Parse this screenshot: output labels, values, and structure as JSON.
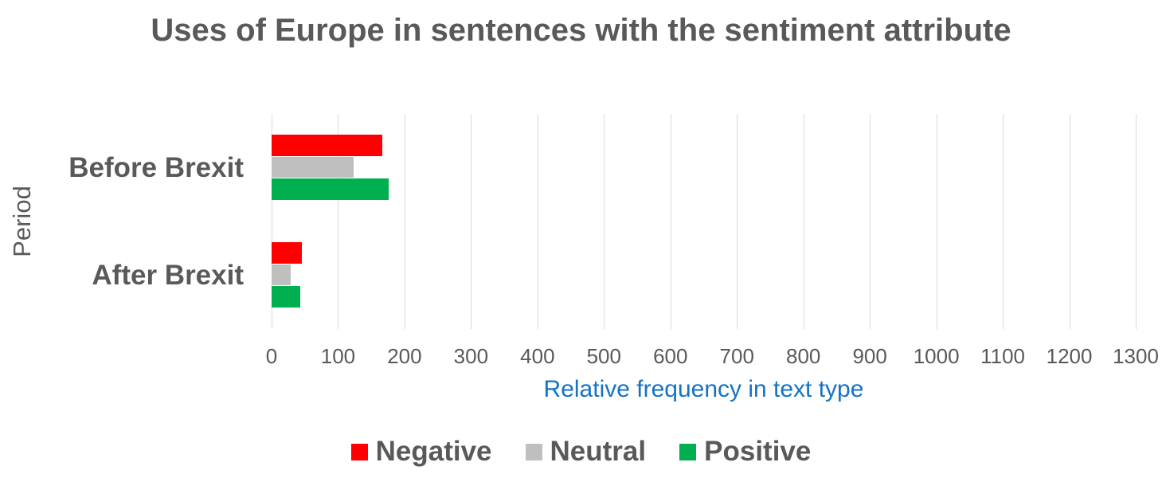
{
  "chart_data": {
    "type": "bar",
    "orientation": "horizontal",
    "title": "Uses of Europe in sentences with the sentiment attribute",
    "xlabel": "Relative frequency in text type",
    "ylabel": "Period",
    "categories": [
      "Before Brexit",
      "After Brexit"
    ],
    "series": [
      {
        "name": "Negative",
        "color": "#FF0000",
        "values": [
          166,
          46
        ]
      },
      {
        "name": "Neutral",
        "color": "#BFBFBF",
        "values": [
          123,
          29
        ]
      },
      {
        "name": "Positive",
        "color": "#00B050",
        "values": [
          176,
          43
        ]
      }
    ],
    "xlim": [
      0,
      1300
    ],
    "xticks": [
      0,
      100,
      200,
      300,
      400,
      500,
      600,
      700,
      800,
      900,
      1000,
      1100,
      1200,
      1300
    ],
    "grid": "vertical-gridlines",
    "legend_position": "bottom",
    "colors": {
      "title_text": "#595959",
      "tick_text": "#595959",
      "gridline": "#D9D9D9",
      "xlabel_text": "#1473C5"
    }
  }
}
